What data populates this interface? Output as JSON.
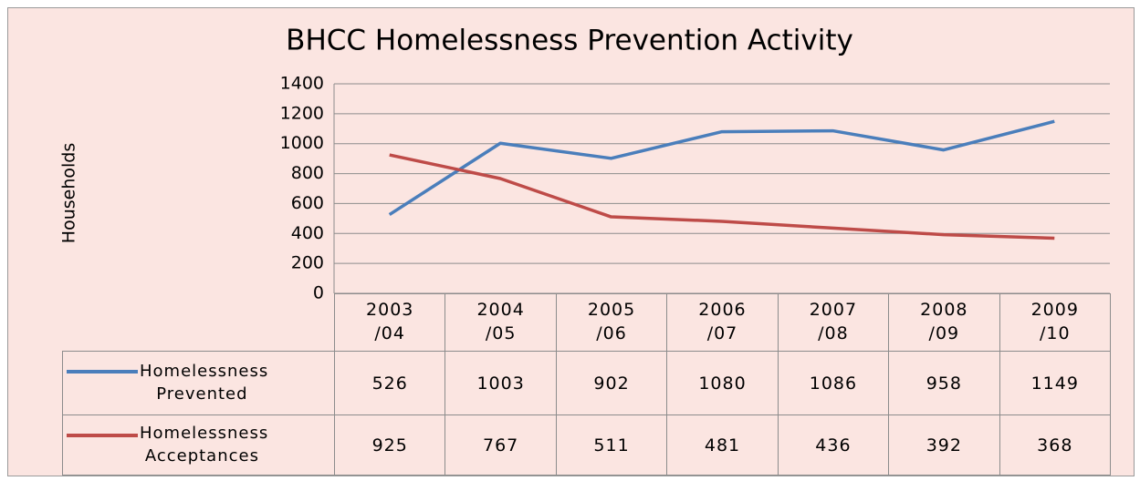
{
  "chart_data": {
    "type": "line",
    "title": "BHCC Homelessness Prevention Activity",
    "y_label": "Households",
    "categories": [
      "2003/04",
      "2004/05",
      "2005/06",
      "2006/07",
      "2007/08",
      "2008/09",
      "2009/10"
    ],
    "series": [
      {
        "name": "Homelessness Prevented",
        "color": "#4a7ebb",
        "values": [
          526,
          1003,
          902,
          1080,
          1086,
          958,
          1149
        ]
      },
      {
        "name": "Homelessness Acceptances",
        "color": "#be4b48",
        "values": [
          925,
          767,
          511,
          481,
          436,
          392,
          368
        ]
      }
    ],
    "ylim": [
      0,
      1400
    ],
    "yticks": [
      0,
      200,
      400,
      600,
      800,
      1000,
      1200,
      1400
    ],
    "grid": true,
    "data_table": true
  }
}
